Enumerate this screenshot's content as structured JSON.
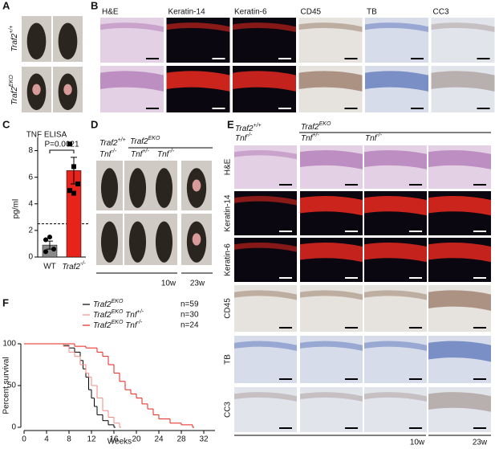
{
  "panel_labels": [
    "A",
    "B",
    "C",
    "D",
    "E",
    "F"
  ],
  "panel_a": {
    "rows": [
      "Traf2+/+",
      "Traf2EKO"
    ]
  },
  "panel_b": {
    "columns": [
      "H&E",
      "Keratin-14",
      "Keratin-6",
      "CD45",
      "TB",
      "CC3"
    ]
  },
  "panel_d": {
    "groups": [
      "Traf2+/+",
      "Traf2EKO"
    ],
    "genotypes": [
      "Tnf-/-",
      "Tnf+/-",
      "Tnf-/-"
    ],
    "ages": [
      "10w",
      "23w"
    ]
  },
  "panel_e": {
    "groups": [
      "Traf2+/+",
      "Traf2EKO"
    ],
    "genotypes": [
      "Tnf-/-",
      "Tnf+/-",
      "Tnf-/-"
    ],
    "rows": [
      "H&E",
      "Keratin-14",
      "Keratin-6",
      "CD45",
      "TB",
      "CC3"
    ],
    "ages": [
      "10w",
      "23w"
    ]
  },
  "chart_data": [
    {
      "type": "bar",
      "title": "TNF ELISA",
      "ylabel": "pg/ml",
      "categories": [
        "WT",
        "Traf2-/-"
      ],
      "values": [
        0.9,
        6.5
      ],
      "errors": [
        0.3,
        1.0
      ],
      "colors": [
        "#8a8a8a",
        "#e8231b"
      ],
      "points": [
        [
          1.3,
          1.5,
          0.6,
          0.4
        ],
        [
          8.5,
          6.8,
          5.5,
          5.0,
          4.8
        ]
      ],
      "annotation": "P=0.0021",
      "threshold": 2.5,
      "ylim": [
        0,
        9
      ],
      "yticks": [
        0,
        2,
        4,
        6,
        8
      ]
    },
    {
      "type": "line",
      "step": true,
      "xlabel": "Weeks",
      "ylabel": "Percent survival",
      "xlim": [
        0,
        34
      ],
      "xticks": [
        0,
        4,
        8,
        12,
        16,
        20,
        24,
        28,
        32
      ],
      "ylim": [
        0,
        100
      ],
      "yticks": [
        0,
        50,
        100
      ],
      "series": [
        {
          "name": "Traf2EKO",
          "count_label": "n=59",
          "color": "#000000",
          "x": [
            0,
            7,
            8,
            9,
            10,
            10.5,
            11,
            11.5,
            12,
            12.5,
            13,
            14,
            15,
            16
          ],
          "values": [
            100,
            98,
            95,
            90,
            80,
            70,
            60,
            45,
            35,
            25,
            15,
            8,
            3,
            0
          ]
        },
        {
          "name": "Traf2EKO Tnf+/-",
          "count_label": "n=30",
          "color": "#f08a80",
          "x": [
            0,
            7,
            8,
            9,
            10,
            11,
            11.5,
            12,
            13,
            14,
            15,
            16,
            17
          ],
          "values": [
            100,
            97,
            90,
            85,
            75,
            65,
            60,
            50,
            35,
            20,
            12,
            5,
            0
          ]
        },
        {
          "name": "Traf2EKO Tnf-/-",
          "count_label": "n=24",
          "color": "#e8231b",
          "x": [
            0,
            9,
            11,
            13,
            14,
            15,
            16,
            17,
            18,
            19,
            20,
            21,
            22,
            23,
            24,
            26,
            28,
            30
          ],
          "values": [
            100,
            97,
            95,
            90,
            85,
            75,
            65,
            55,
            45,
            40,
            35,
            28,
            22,
            15,
            10,
            5,
            3,
            0
          ]
        }
      ]
    }
  ]
}
